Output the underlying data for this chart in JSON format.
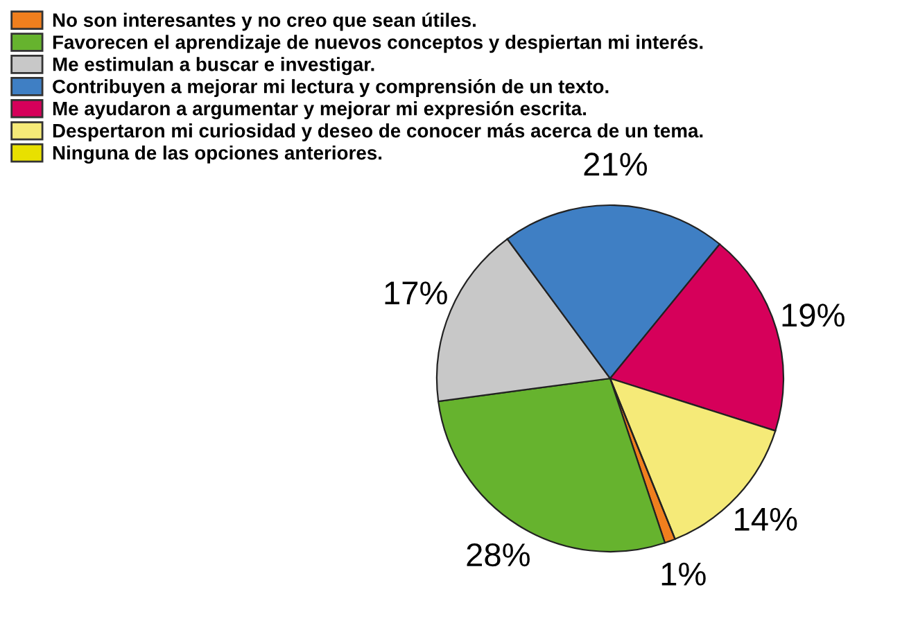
{
  "chart_data": {
    "type": "pie",
    "categories": [
      "No son interesantes y no creo que sean útiles.",
      "Favorecen el aprendizaje de nuevos conceptos y despiertan mi interés.",
      "Me estimulan a buscar e investigar.",
      "Contribuyen a mejorar mi lectura y comprensión de un texto.",
      "Me ayudaron a argumentar y mejorar mi expresión escrita.",
      "Despertaron mi curiosidad y deseo de conocer más acerca de un tema.",
      "Ninguna de las opciones anteriores."
    ],
    "values": [
      1,
      28,
      17,
      21,
      19,
      14,
      0
    ],
    "colors": [
      "#f07f1e",
      "#66b32e",
      "#c8c8c8",
      "#3f7fc4",
      "#d6005a",
      "#f5ea78",
      "#e8e000"
    ],
    "value_labels": [
      "1%",
      "28%",
      "17%",
      "21%",
      "19%",
      "14%",
      null
    ],
    "legend": "top left"
  }
}
